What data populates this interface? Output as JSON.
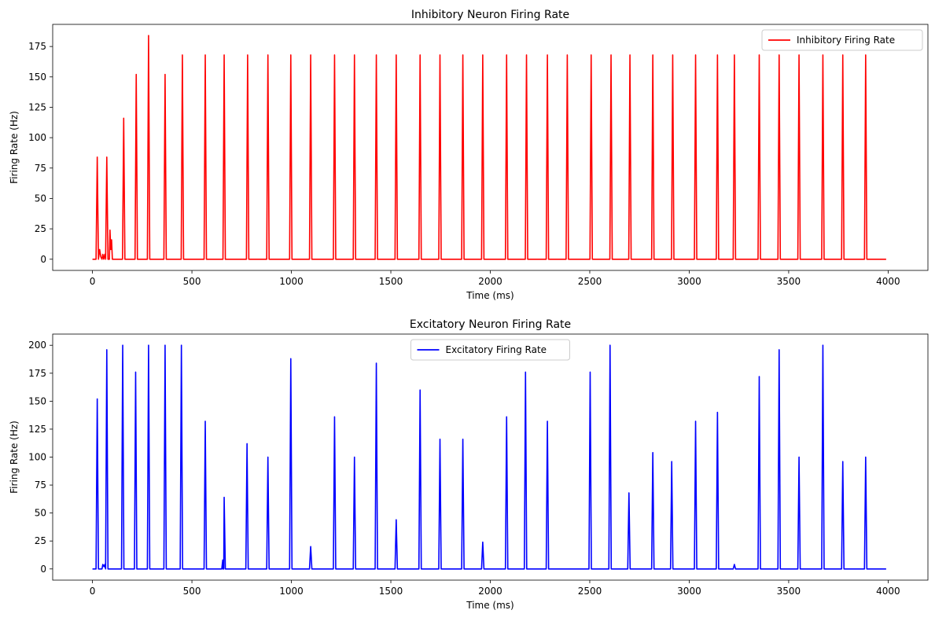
{
  "chart_data": [
    {
      "type": "line",
      "title": "Inhibitory Neuron Firing Rate",
      "xlabel": "Time (ms)",
      "ylabel": "Firing Rate (Hz)",
      "xlim": [
        -200,
        4200
      ],
      "ylim": [
        -9.2,
        193.2
      ],
      "xticks": [
        0,
        500,
        1000,
        1500,
        2000,
        2500,
        3000,
        3500,
        4000
      ],
      "yticks": [
        0,
        25,
        50,
        75,
        100,
        125,
        150,
        175
      ],
      "legend_position": "top-right",
      "grid": false,
      "series": [
        {
          "name": "Inhibitory Firing Rate",
          "color": "#ff0000",
          "baseline_range": [
            0,
            3990
          ],
          "pulses": [
            {
              "t": 24,
              "v": 84
            },
            {
              "t": 72,
              "v": 84
            },
            {
              "t": 157,
              "v": 116
            },
            {
              "t": 220,
              "v": 152
            },
            {
              "t": 282,
              "v": 184
            },
            {
              "t": 365,
              "v": 152
            },
            {
              "t": 452,
              "v": 168
            },
            {
              "t": 567,
              "v": 168
            },
            {
              "t": 662,
              "v": 168
            },
            {
              "t": 780,
              "v": 168
            },
            {
              "t": 882,
              "v": 168
            },
            {
              "t": 997,
              "v": 168
            },
            {
              "t": 1097,
              "v": 168
            },
            {
              "t": 1217,
              "v": 168
            },
            {
              "t": 1317,
              "v": 168
            },
            {
              "t": 1427,
              "v": 168
            },
            {
              "t": 1527,
              "v": 168
            },
            {
              "t": 1647,
              "v": 168
            },
            {
              "t": 1747,
              "v": 168
            },
            {
              "t": 1862,
              "v": 168
            },
            {
              "t": 1962,
              "v": 168
            },
            {
              "t": 2082,
              "v": 168
            },
            {
              "t": 2182,
              "v": 168
            },
            {
              "t": 2287,
              "v": 168
            },
            {
              "t": 2387,
              "v": 168
            },
            {
              "t": 2507,
              "v": 168
            },
            {
              "t": 2607,
              "v": 168
            },
            {
              "t": 2702,
              "v": 168
            },
            {
              "t": 2817,
              "v": 168
            },
            {
              "t": 2917,
              "v": 168
            },
            {
              "t": 3032,
              "v": 168
            },
            {
              "t": 3142,
              "v": 168
            },
            {
              "t": 3227,
              "v": 168
            },
            {
              "t": 3352,
              "v": 168
            },
            {
              "t": 3452,
              "v": 168
            },
            {
              "t": 3552,
              "v": 168
            },
            {
              "t": 3672,
              "v": 168
            },
            {
              "t": 3772,
              "v": 168
            },
            {
              "t": 3887,
              "v": 168
            }
          ],
          "extra_points": [
            [
              30,
              0
            ],
            [
              36,
              8
            ],
            [
              42,
              2
            ],
            [
              48,
              0
            ],
            [
              52,
              4
            ],
            [
              57,
              0
            ],
            [
              62,
              4
            ],
            [
              65,
              2
            ],
            [
              85,
              0
            ],
            [
              88,
              24
            ],
            [
              92,
              8
            ],
            [
              96,
              16
            ],
            [
              100,
              0
            ]
          ]
        }
      ]
    },
    {
      "type": "line",
      "title": "Excitatory Neuron Firing Rate",
      "xlabel": "Time (ms)",
      "ylabel": "Firing Rate (Hz)",
      "xlim": [
        -200,
        4200
      ],
      "ylim": [
        -10,
        210
      ],
      "xticks": [
        0,
        500,
        1000,
        1500,
        2000,
        2500,
        3000,
        3500,
        4000
      ],
      "yticks": [
        0,
        25,
        50,
        75,
        100,
        125,
        150,
        175,
        200
      ],
      "legend_position": "top-center",
      "grid": false,
      "series": [
        {
          "name": "Excitatory Firing Rate",
          "color": "#0000ff",
          "baseline_range": [
            0,
            3990
          ],
          "pulses": [
            {
              "t": 24,
              "v": 152
            },
            {
              "t": 72,
              "v": 196
            },
            {
              "t": 152,
              "v": 200
            },
            {
              "t": 217,
              "v": 176
            },
            {
              "t": 282,
              "v": 200
            },
            {
              "t": 365,
              "v": 200
            },
            {
              "t": 447,
              "v": 200
            },
            {
              "t": 567,
              "v": 132
            },
            {
              "t": 662,
              "v": 64
            },
            {
              "t": 777,
              "v": 112
            },
            {
              "t": 882,
              "v": 100
            },
            {
              "t": 997,
              "v": 188
            },
            {
              "t": 1097,
              "v": 20
            },
            {
              "t": 1217,
              "v": 136
            },
            {
              "t": 1317,
              "v": 100
            },
            {
              "t": 1427,
              "v": 184
            },
            {
              "t": 1527,
              "v": 44
            },
            {
              "t": 1647,
              "v": 160
            },
            {
              "t": 1747,
              "v": 116
            },
            {
              "t": 1862,
              "v": 116
            },
            {
              "t": 1962,
              "v": 24
            },
            {
              "t": 2082,
              "v": 136
            },
            {
              "t": 2177,
              "v": 176
            },
            {
              "t": 2287,
              "v": 132
            },
            {
              "t": 2502,
              "v": 176
            },
            {
              "t": 2602,
              "v": 200
            },
            {
              "t": 2697,
              "v": 68
            },
            {
              "t": 2817,
              "v": 104
            },
            {
              "t": 2912,
              "v": 96
            },
            {
              "t": 3032,
              "v": 132
            },
            {
              "t": 3142,
              "v": 140
            },
            {
              "t": 3227,
              "v": 4
            },
            {
              "t": 3352,
              "v": 172
            },
            {
              "t": 3452,
              "v": 196
            },
            {
              "t": 3552,
              "v": 100
            },
            {
              "t": 3672,
              "v": 200
            },
            {
              "t": 3772,
              "v": 96
            },
            {
              "t": 3887,
              "v": 100
            }
          ],
          "extra_points": [
            [
              48,
              0
            ],
            [
              52,
              4
            ],
            [
              58,
              2
            ],
            [
              62,
              4
            ],
            [
              650,
              0
            ],
            [
              655,
              8
            ],
            [
              660,
              0
            ]
          ]
        }
      ]
    }
  ]
}
